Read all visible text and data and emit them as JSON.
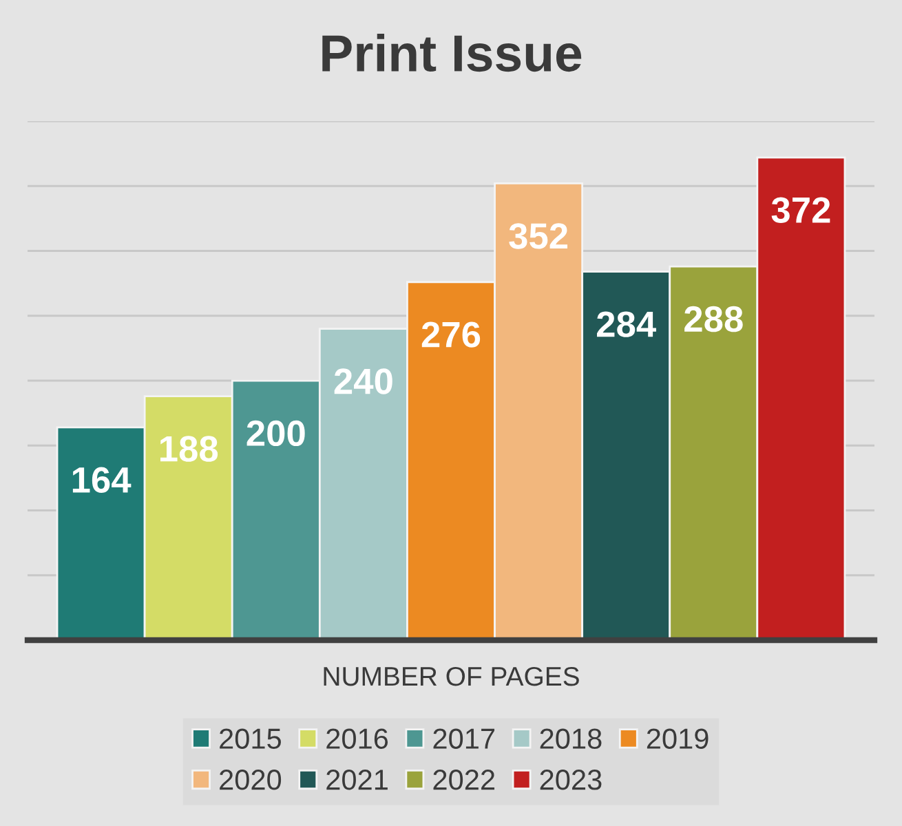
{
  "chart_data": {
    "type": "bar",
    "title": "Print Issue",
    "xlabel": "NUMBER OF PAGES",
    "categories": [
      null
    ],
    "series": [
      {
        "name": "2015",
        "color": "#1f7b75",
        "values": [
          164
        ]
      },
      {
        "name": "2016",
        "color": "#d4dc66",
        "values": [
          188
        ]
      },
      {
        "name": "2017",
        "color": "#4e9792",
        "values": [
          200
        ]
      },
      {
        "name": "2018",
        "color": "#a5c9c7",
        "values": [
          240
        ]
      },
      {
        "name": "2019",
        "color": "#ec8a22",
        "values": [
          276
        ]
      },
      {
        "name": "2020",
        "color": "#f2b77d",
        "values": [
          352
        ]
      },
      {
        "name": "2021",
        "color": "#215856",
        "values": [
          284
        ]
      },
      {
        "name": "2022",
        "color": "#9aa33c",
        "values": [
          288
        ]
      },
      {
        "name": "2023",
        "color": "#c21f1f",
        "values": [
          372
        ]
      }
    ],
    "ylim": [
      0,
      400
    ],
    "yticks": [
      {
        "value": 0,
        "label": null
      },
      {
        "value": 50,
        "label": null
      },
      {
        "value": 100,
        "label": null
      },
      {
        "value": 150,
        "label": null
      },
      {
        "value": 200,
        "label": null
      },
      {
        "value": 250,
        "label": null
      },
      {
        "value": 300,
        "label": null
      },
      {
        "value": 350,
        "label": null
      },
      {
        "value": 400,
        "label": null
      }
    ],
    "grid": "y",
    "legend": "bottom",
    "data_labels": true
  }
}
